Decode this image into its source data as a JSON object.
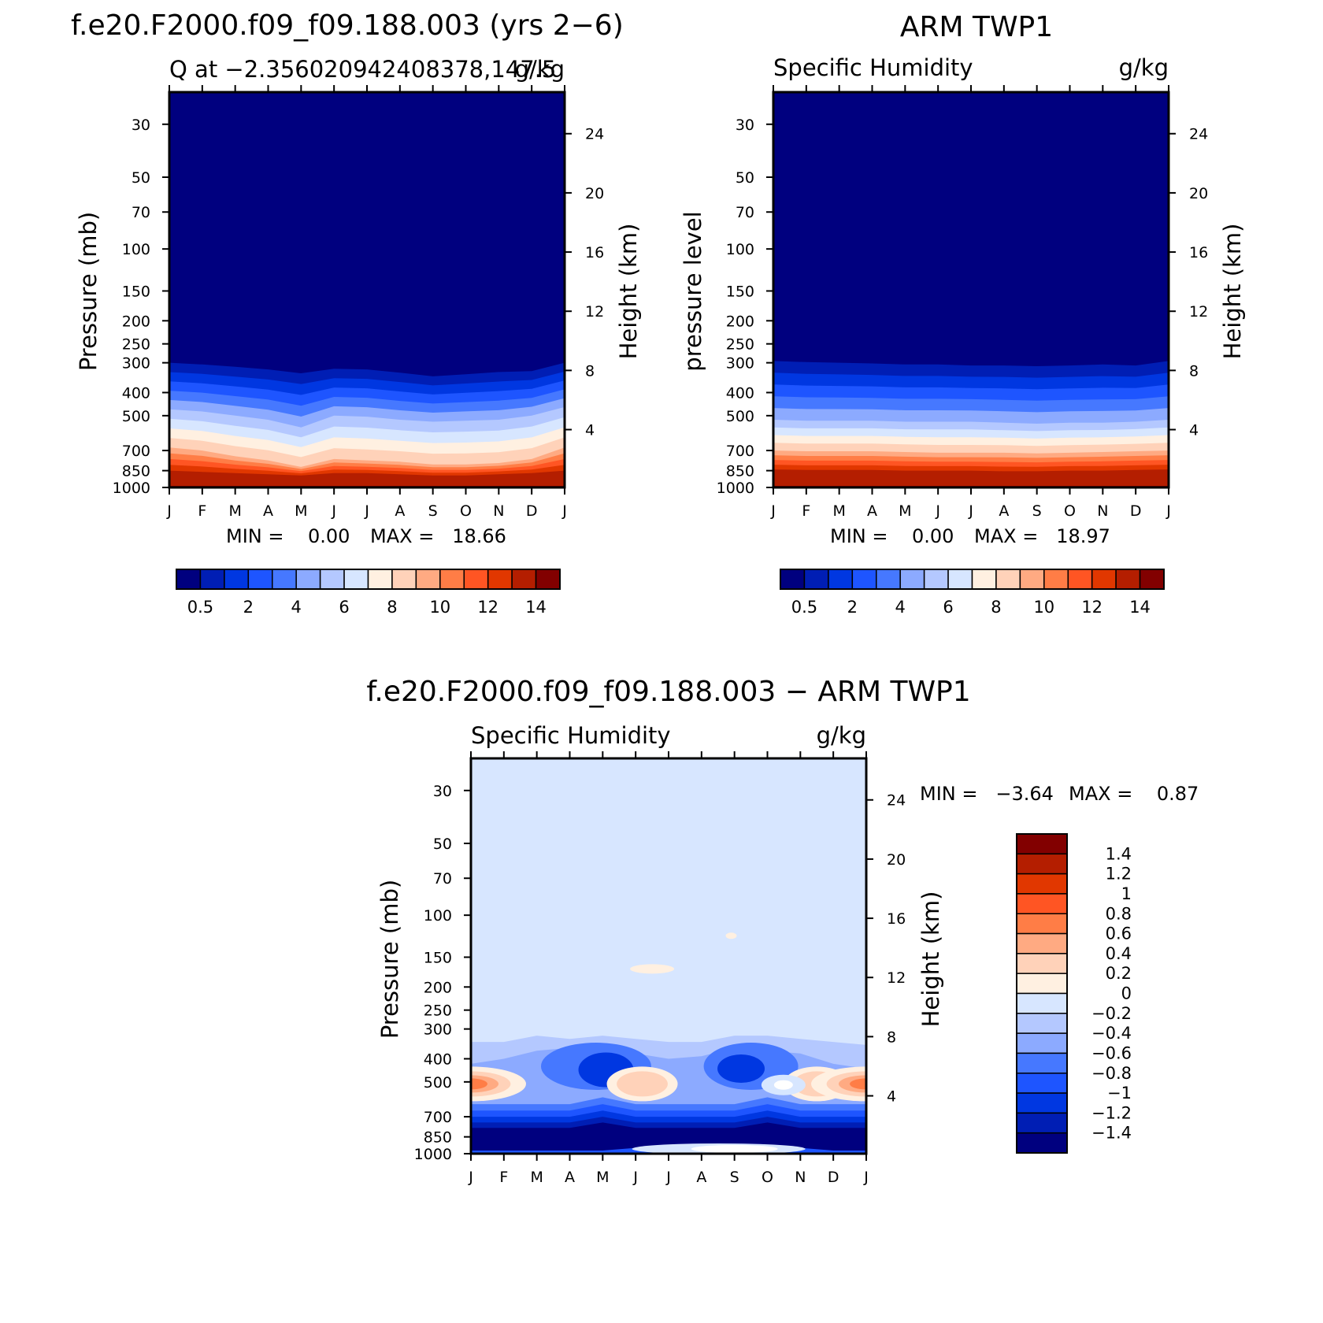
{
  "chart_data": [
    {
      "type": "heatmap",
      "title": "f.e20.F2000.f09_f09.188.003 (yrs 2−6)",
      "subtitle_left": "Q at −2.356020942408378,147.5",
      "subtitle_right": "g/kg",
      "ylabel_left": "Pressure (mb)",
      "ylabel_right": "Height (km)",
      "x_ticks": [
        "J",
        "F",
        "M",
        "A",
        "M",
        "J",
        "J",
        "A",
        "S",
        "O",
        "N",
        "D",
        "J"
      ],
      "y_ticks_pressure": [
        30,
        50,
        70,
        100,
        150,
        200,
        250,
        300,
        400,
        500,
        700,
        850,
        1000
      ],
      "y_ticks_height": [
        24,
        20,
        16,
        12,
        8,
        4
      ],
      "y_scale": "log",
      "min_text": "MIN =    0.00",
      "max_text": "MAX =   18.66",
      "colorbar": {
        "orientation": "horizontal",
        "labels": [
          "0.5",
          "2",
          "4",
          "6",
          "8",
          "10",
          "12",
          "14"
        ],
        "colors": [
          "#00007f",
          "#001eb4",
          "#0037e1",
          "#1e55ff",
          "#4678ff",
          "#8caaff",
          "#b4c8ff",
          "#d7e6ff",
          "#fff0e1",
          "#ffd2b9",
          "#ffaa82",
          "#ff7d46",
          "#ff5523",
          "#e13700",
          "#b41e00",
          "#820000"
        ]
      },
      "series": [
        {
          "name": "isoline 0.5 g/kg (pressure)",
          "values": [
            300,
            305,
            312,
            320,
            332,
            318,
            320,
            330,
            342,
            335,
            328,
            325,
            300
          ]
        },
        {
          "name": "isoline 4 g/kg (pressure)",
          "values": [
            470,
            480,
            500,
            520,
            560,
            500,
            505,
            520,
            530,
            525,
            520,
            500,
            460
          ]
        },
        {
          "name": "isoline 8 g/kg (pressure)",
          "values": [
            680,
            700,
            740,
            770,
            820,
            760,
            770,
            780,
            800,
            800,
            790,
            760,
            680
          ]
        },
        {
          "name": "isoline 12 g/kg (pressure)",
          "values": [
            850,
            860,
            870,
            880,
            890,
            870,
            870,
            880,
            890,
            890,
            880,
            870,
            850
          ]
        }
      ]
    },
    {
      "type": "heatmap",
      "title": "ARM TWP1",
      "subtitle_left": "Specific Humidity",
      "subtitle_right": "g/kg",
      "ylabel_left": "pressure level",
      "ylabel_right": "Height (km)",
      "x_ticks": [
        "J",
        "F",
        "M",
        "A",
        "M",
        "J",
        "J",
        "A",
        "S",
        "O",
        "N",
        "D",
        "J"
      ],
      "y_ticks_pressure": [
        30,
        50,
        70,
        100,
        150,
        200,
        250,
        300,
        400,
        500,
        700,
        850,
        1000
      ],
      "y_ticks_height": [
        24,
        20,
        16,
        12,
        8,
        4
      ],
      "y_scale": "log",
      "min_text": "MIN =    0.00",
      "max_text": "MAX =   18.97",
      "colorbar": {
        "orientation": "horizontal",
        "labels": [
          "0.5",
          "2",
          "4",
          "6",
          "8",
          "10",
          "12",
          "14"
        ],
        "colors": [
          "#00007f",
          "#001eb4",
          "#0037e1",
          "#1e55ff",
          "#4678ff",
          "#8caaff",
          "#b4c8ff",
          "#d7e6ff",
          "#fff0e1",
          "#ffd2b9",
          "#ffaa82",
          "#ff7d46",
          "#ff5523",
          "#e13700",
          "#b41e00",
          "#820000"
        ]
      },
      "series": [
        {
          "name": "isoline 0.5 g/kg (pressure)",
          "values": [
            295,
            298,
            300,
            302,
            305,
            305,
            308,
            308,
            310,
            308,
            305,
            308,
            295
          ]
        },
        {
          "name": "isoline 4 g/kg (pressure)",
          "values": [
            520,
            525,
            525,
            525,
            530,
            530,
            530,
            535,
            540,
            535,
            535,
            530,
            520
          ]
        },
        {
          "name": "isoline 8 g/kg (pressure)",
          "values": [
            700,
            705,
            705,
            705,
            710,
            715,
            715,
            715,
            720,
            715,
            710,
            705,
            700
          ]
        },
        {
          "name": "isoline 12 g/kg (pressure)",
          "values": [
            840,
            845,
            845,
            845,
            850,
            850,
            850,
            855,
            855,
            850,
            850,
            845,
            840
          ]
        }
      ]
    },
    {
      "type": "heatmap",
      "title": "f.e20.F2000.f09_f09.188.003 − ARM TWP1",
      "subtitle_left": "Specific Humidity",
      "subtitle_right": "g/kg",
      "ylabel_left": "Pressure (mb)",
      "ylabel_right": "Height (km)",
      "x_ticks": [
        "J",
        "F",
        "M",
        "A",
        "M",
        "J",
        "J",
        "A",
        "S",
        "O",
        "N",
        "D",
        "J"
      ],
      "y_ticks_pressure": [
        30,
        50,
        70,
        100,
        150,
        200,
        250,
        300,
        400,
        500,
        700,
        850,
        1000
      ],
      "y_ticks_height": [
        24,
        20,
        16,
        12,
        8,
        4
      ],
      "y_scale": "log",
      "min_text": "MIN =   −3.64",
      "max_text": "MAX =    0.87",
      "colorbar": {
        "orientation": "vertical",
        "labels": [
          "1.4",
          "1.2",
          "1",
          "0.8",
          "0.6",
          "0.4",
          "0.2",
          "0",
          "−0.2",
          "−0.4",
          "−0.6",
          "−0.8",
          "−1",
          "−1.2",
          "−1.4"
        ],
        "colors": [
          "#820000",
          "#b41e00",
          "#e13700",
          "#ff5523",
          "#ff7d46",
          "#ffaa82",
          "#ffd2b9",
          "#fff0e1",
          "#d7e6ff",
          "#b4c8ff",
          "#8caaff",
          "#4678ff",
          "#1e55ff",
          "#0037e1",
          "#001eb4",
          "#00007f"
        ]
      },
      "series": [
        {
          "name": "difference near 500 mb (g/kg)",
          "values": [
            0.8,
            0.6,
            0.0,
            -0.4,
            -1.0,
            0.3,
            0.0,
            -0.4,
            -0.8,
            0.0,
            -0.2,
            0.4,
            0.8
          ]
        },
        {
          "name": "difference near 400 mb (g/kg)",
          "values": [
            0.0,
            -0.2,
            -0.4,
            -0.6,
            -0.8,
            -0.4,
            -0.4,
            -0.4,
            -0.8,
            -0.6,
            -0.4,
            -0.2,
            0.0
          ]
        },
        {
          "name": "difference near 850 mb (g/kg)",
          "values": [
            -1.4,
            -1.4,
            -1.4,
            -1.4,
            -1.4,
            -1.2,
            -1.2,
            -1.2,
            -1.2,
            -1.2,
            -1.4,
            -1.4,
            -1.4
          ]
        }
      ]
    }
  ]
}
